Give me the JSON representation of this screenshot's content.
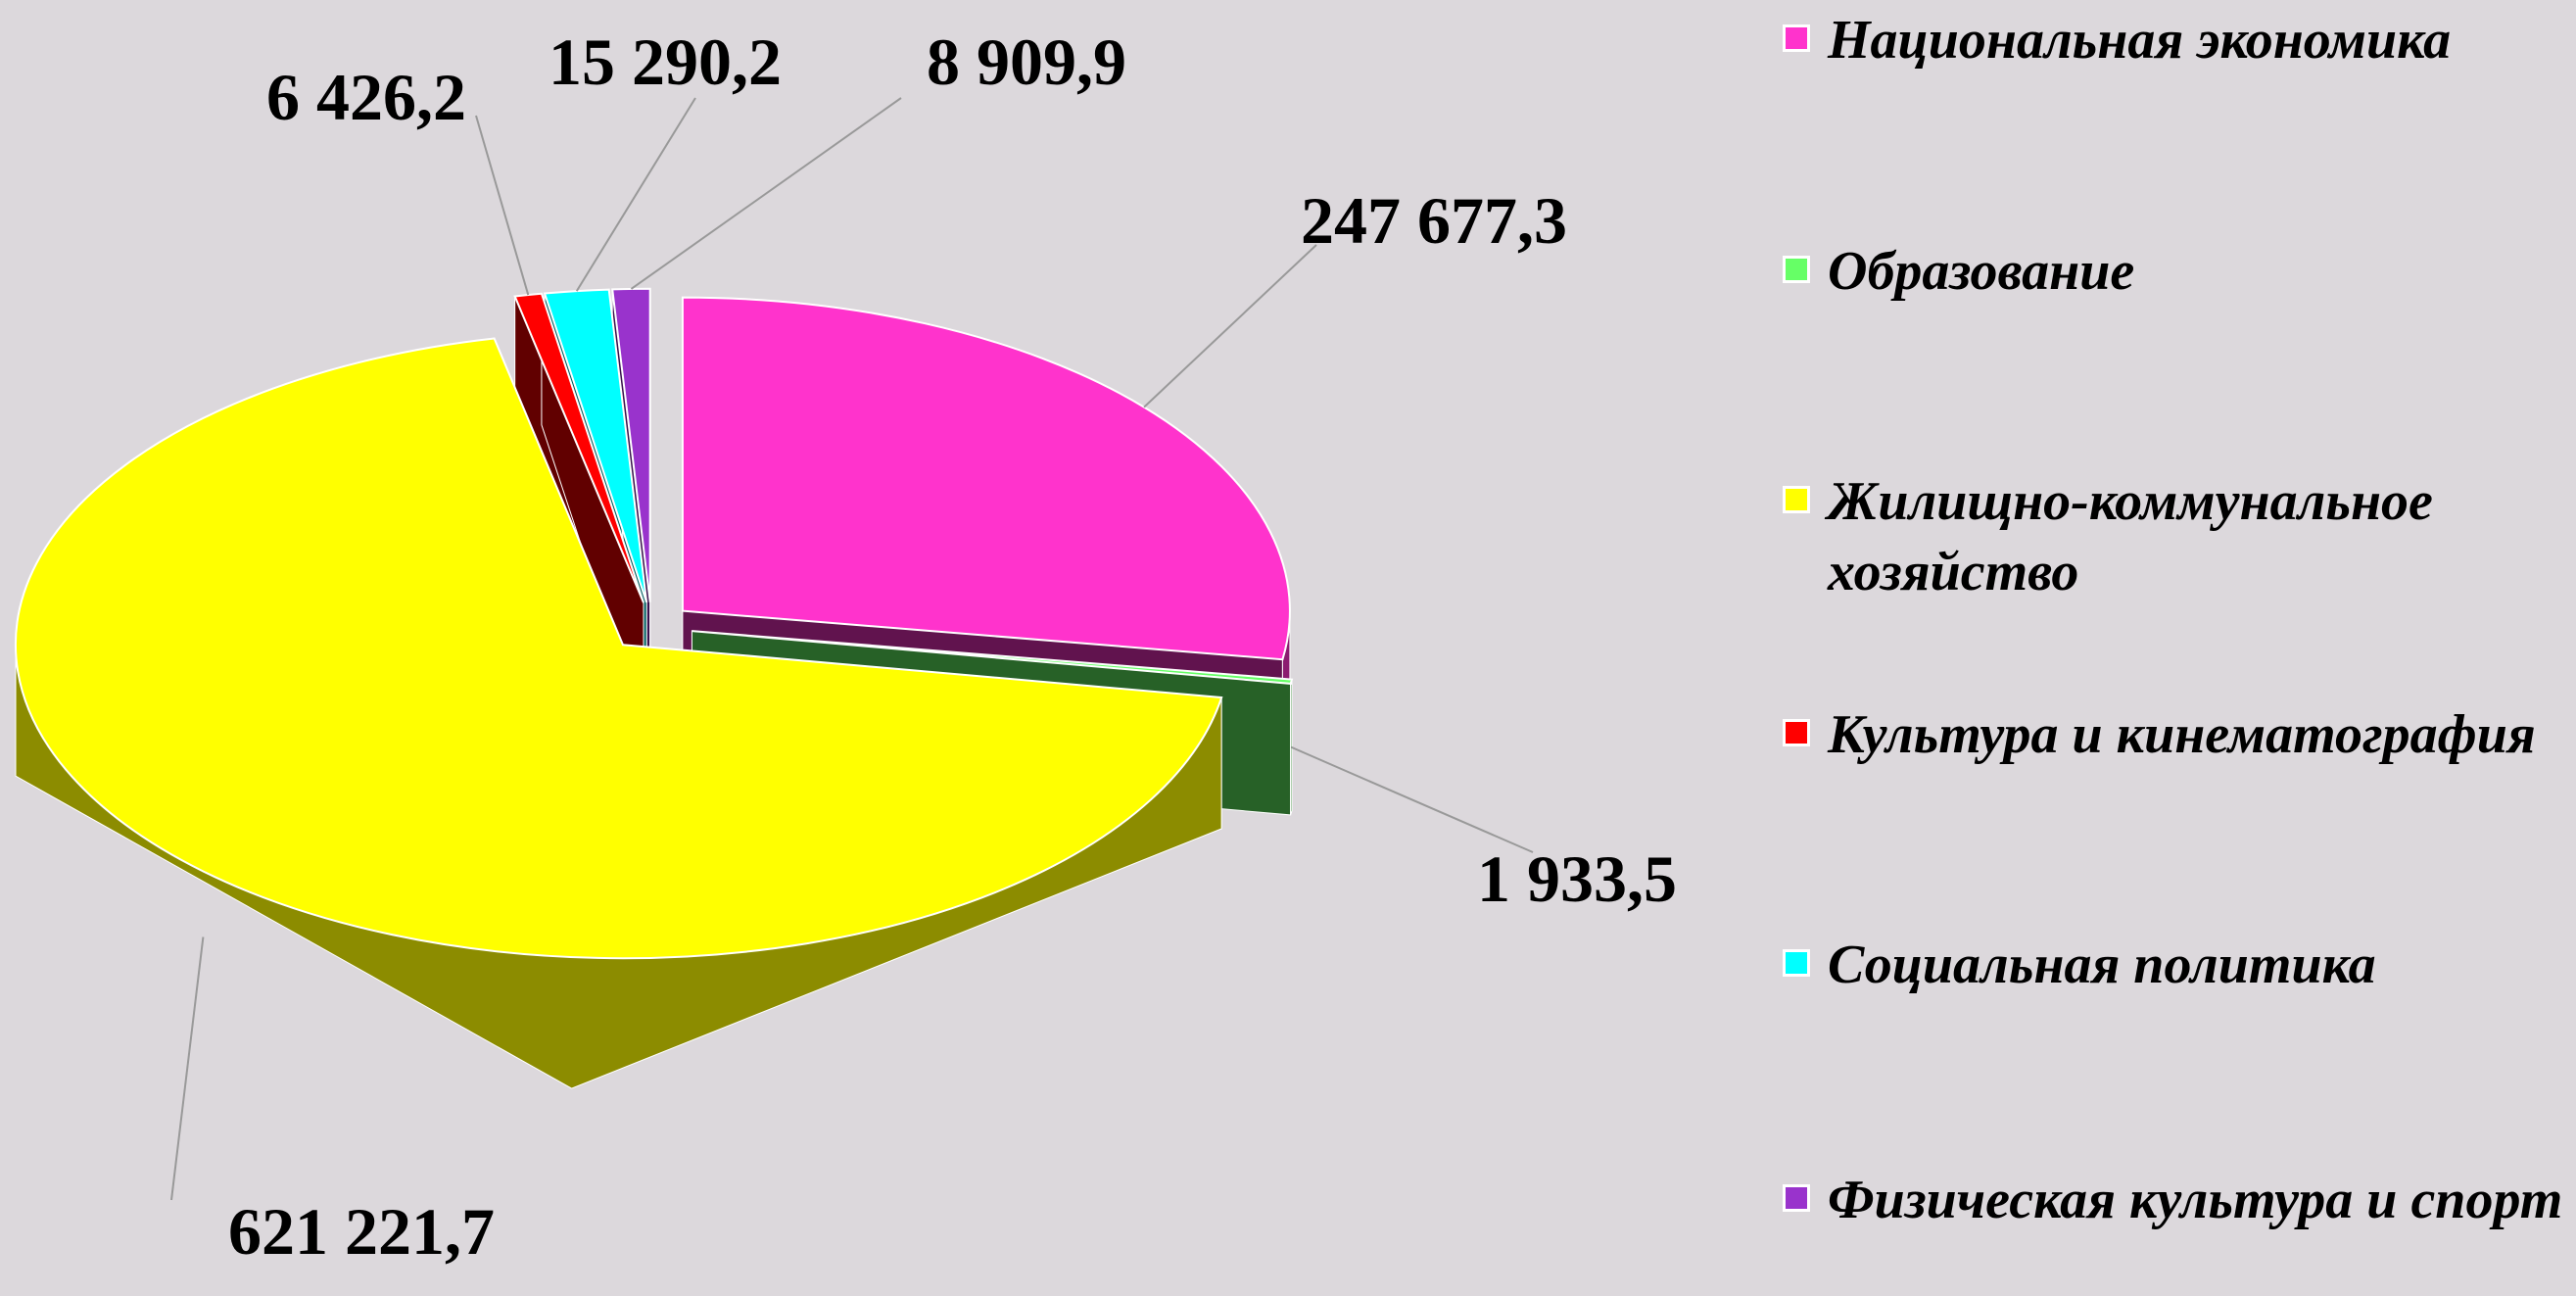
{
  "chart_data": {
    "type": "pie",
    "categories": [
      "Национальная экономика",
      "Образование",
      "Жилищно-коммунальное хозяйство",
      "Культура и кинематография",
      "Социальная политика",
      "Физическая культура и спорт"
    ],
    "values": [
      247677.3,
      1933.5,
      621221.7,
      6426.2,
      15290.2,
      8909.9
    ],
    "value_labels": [
      "247 677,3",
      "1 933,5",
      "621 221,7",
      "6 426,2",
      "15 290,2",
      "8 909,9"
    ],
    "colors": [
      "#ff33cc",
      "#66ff66",
      "#ffff00",
      "#ff0000",
      "#00ffff",
      "#9933cc"
    ],
    "legend": "right"
  }
}
